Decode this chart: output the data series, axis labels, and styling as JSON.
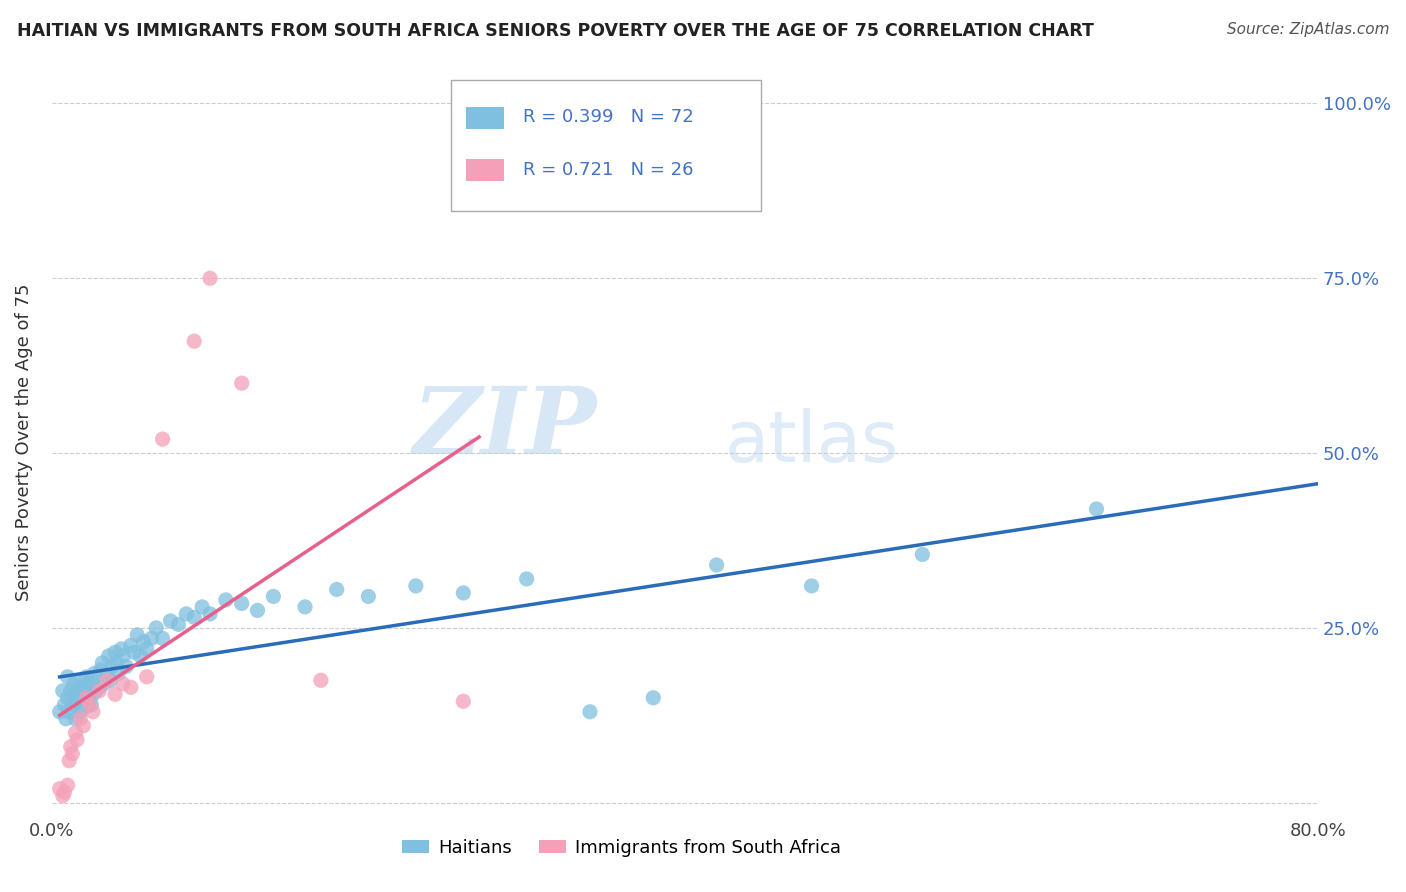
{
  "title": "HAITIAN VS IMMIGRANTS FROM SOUTH AFRICA SENIORS POVERTY OVER THE AGE OF 75 CORRELATION CHART",
  "source": "Source: ZipAtlas.com",
  "ylabel": "Seniors Poverty Over the Age of 75",
  "xlim": [
    0.0,
    0.8
  ],
  "ylim": [
    -0.02,
    1.05
  ],
  "ytick_positions": [
    0.0,
    0.25,
    0.5,
    0.75,
    1.0
  ],
  "ytick_labels": [
    "",
    "25.0%",
    "50.0%",
    "75.0%",
    "100.0%"
  ],
  "legend_labels": [
    "Haitians",
    "Immigrants from South Africa"
  ],
  "R_haitian": 0.399,
  "N_haitian": 72,
  "R_southafrica": 0.721,
  "N_southafrica": 26,
  "watermark_zip": "ZIP",
  "watermark_atlas": "atlas",
  "color_haitian": "#7fbfdf",
  "color_sa": "#f4a0b8",
  "line_color_haitian": "#2b6cb8",
  "line_color_sa": "#e8608a",
  "bg_color": "#ffffff",
  "grid_color": "#cccccc",
  "scatter_haitian_x": [
    0.005,
    0.007,
    0.008,
    0.009,
    0.01,
    0.01,
    0.011,
    0.012,
    0.013,
    0.014,
    0.015,
    0.015,
    0.016,
    0.017,
    0.018,
    0.019,
    0.02,
    0.02,
    0.021,
    0.022,
    0.023,
    0.024,
    0.025,
    0.025,
    0.026,
    0.027,
    0.028,
    0.03,
    0.031,
    0.032,
    0.033,
    0.035,
    0.036,
    0.037,
    0.038,
    0.04,
    0.041,
    0.042,
    0.044,
    0.045,
    0.047,
    0.05,
    0.052,
    0.054,
    0.056,
    0.058,
    0.06,
    0.063,
    0.066,
    0.07,
    0.075,
    0.08,
    0.085,
    0.09,
    0.095,
    0.1,
    0.11,
    0.12,
    0.13,
    0.14,
    0.16,
    0.18,
    0.2,
    0.23,
    0.26,
    0.3,
    0.34,
    0.38,
    0.42,
    0.48,
    0.55,
    0.66
  ],
  "scatter_haitian_y": [
    0.13,
    0.16,
    0.14,
    0.12,
    0.15,
    0.18,
    0.13,
    0.16,
    0.14,
    0.17,
    0.12,
    0.155,
    0.145,
    0.165,
    0.13,
    0.175,
    0.135,
    0.16,
    0.15,
    0.18,
    0.145,
    0.17,
    0.14,
    0.175,
    0.155,
    0.185,
    0.16,
    0.165,
    0.19,
    0.2,
    0.17,
    0.18,
    0.21,
    0.175,
    0.195,
    0.215,
    0.2,
    0.185,
    0.22,
    0.21,
    0.195,
    0.225,
    0.215,
    0.24,
    0.21,
    0.23,
    0.22,
    0.235,
    0.25,
    0.235,
    0.26,
    0.255,
    0.27,
    0.265,
    0.28,
    0.27,
    0.29,
    0.285,
    0.275,
    0.295,
    0.28,
    0.305,
    0.295,
    0.31,
    0.3,
    0.32,
    0.13,
    0.15,
    0.34,
    0.31,
    0.355,
    0.42
  ],
  "scatter_sa_x": [
    0.005,
    0.007,
    0.008,
    0.01,
    0.011,
    0.012,
    0.013,
    0.015,
    0.016,
    0.018,
    0.02,
    0.022,
    0.024,
    0.026,
    0.03,
    0.035,
    0.04,
    0.045,
    0.05,
    0.06,
    0.07,
    0.09,
    0.1,
    0.12,
    0.17,
    0.26
  ],
  "scatter_sa_y": [
    0.02,
    0.01,
    0.015,
    0.025,
    0.06,
    0.08,
    0.07,
    0.1,
    0.09,
    0.12,
    0.11,
    0.15,
    0.14,
    0.13,
    0.16,
    0.175,
    0.155,
    0.17,
    0.165,
    0.18,
    0.52,
    0.66,
    0.75,
    0.6,
    0.175,
    0.145
  ]
}
